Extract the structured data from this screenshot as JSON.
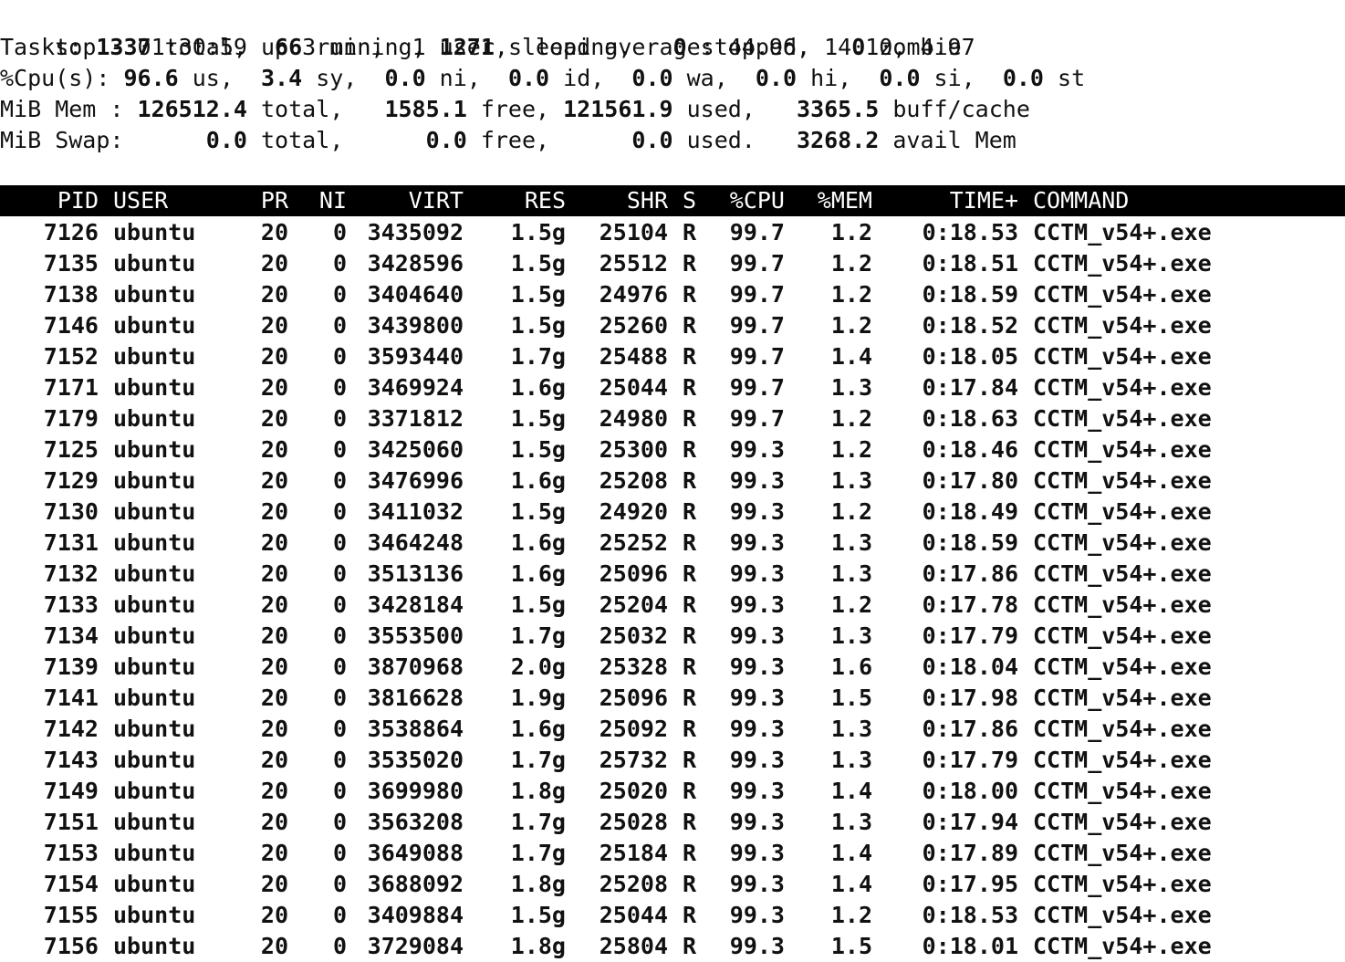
{
  "summary": {
    "line1": "top - 01:30:59 up 3 min,  1 user,  load average: 44.96, 14.10, 4.97",
    "tasks": {
      "label": "Tasks: ",
      "total": "1337",
      "total_lbl": " total,  ",
      "running": "66",
      "running_lbl": " running, ",
      "sleeping": "1271",
      "sleeping_lbl": " sleeping,   ",
      "stopped": "0",
      "stopped_lbl": " stopped,   ",
      "zombie": "0",
      "zombie_lbl": " zombie"
    },
    "cpu": {
      "label": "%Cpu(s): ",
      "us": "96.6",
      "us_lbl": " us,  ",
      "sy": "3.4",
      "sy_lbl": " sy,  ",
      "ni": "0.0",
      "ni_lbl": " ni,  ",
      "id": "0.0",
      "id_lbl": " id,  ",
      "wa": "0.0",
      "wa_lbl": " wa,  ",
      "hi": "0.0",
      "hi_lbl": " hi,  ",
      "si": "0.0",
      "si_lbl": " si,  ",
      "st": "0.0",
      "st_lbl": " st"
    },
    "mem": {
      "label": "MiB Mem : ",
      "total": "126512.4",
      "total_lbl": " total,   ",
      "free": "1585.1",
      "free_lbl": " free, ",
      "used": "121561.9",
      "used_lbl": " used,   ",
      "buff": "3365.5",
      "buff_lbl": " buff/cache"
    },
    "swap": {
      "label": "MiB Swap:      ",
      "total": "0.0",
      "total_lbl": " total,      ",
      "free": "0.0",
      "free_lbl": " free,      ",
      "used": "0.0",
      "used_lbl": " used.   ",
      "avail": "3268.2",
      "avail_lbl": " avail Mem"
    }
  },
  "columns": [
    "PID",
    "USER",
    "PR",
    "NI",
    "VIRT",
    "RES",
    "SHR",
    "S",
    "%CPU",
    "%MEM",
    "TIME+",
    "COMMAND"
  ],
  "processes": [
    [
      "7126",
      "ubuntu",
      "20",
      "0",
      "3435092",
      "1.5g",
      "25104",
      "R",
      "99.7",
      "1.2",
      "0:18.53",
      "CCTM_v54+.exe"
    ],
    [
      "7135",
      "ubuntu",
      "20",
      "0",
      "3428596",
      "1.5g",
      "25512",
      "R",
      "99.7",
      "1.2",
      "0:18.51",
      "CCTM_v54+.exe"
    ],
    [
      "7138",
      "ubuntu",
      "20",
      "0",
      "3404640",
      "1.5g",
      "24976",
      "R",
      "99.7",
      "1.2",
      "0:18.59",
      "CCTM_v54+.exe"
    ],
    [
      "7146",
      "ubuntu",
      "20",
      "0",
      "3439800",
      "1.5g",
      "25260",
      "R",
      "99.7",
      "1.2",
      "0:18.52",
      "CCTM_v54+.exe"
    ],
    [
      "7152",
      "ubuntu",
      "20",
      "0",
      "3593440",
      "1.7g",
      "25488",
      "R",
      "99.7",
      "1.4",
      "0:18.05",
      "CCTM_v54+.exe"
    ],
    [
      "7171",
      "ubuntu",
      "20",
      "0",
      "3469924",
      "1.6g",
      "25044",
      "R",
      "99.7",
      "1.3",
      "0:17.84",
      "CCTM_v54+.exe"
    ],
    [
      "7179",
      "ubuntu",
      "20",
      "0",
      "3371812",
      "1.5g",
      "24980",
      "R",
      "99.7",
      "1.2",
      "0:18.63",
      "CCTM_v54+.exe"
    ],
    [
      "7125",
      "ubuntu",
      "20",
      "0",
      "3425060",
      "1.5g",
      "25300",
      "R",
      "99.3",
      "1.2",
      "0:18.46",
      "CCTM_v54+.exe"
    ],
    [
      "7129",
      "ubuntu",
      "20",
      "0",
      "3476996",
      "1.6g",
      "25208",
      "R",
      "99.3",
      "1.3",
      "0:17.80",
      "CCTM_v54+.exe"
    ],
    [
      "7130",
      "ubuntu",
      "20",
      "0",
      "3411032",
      "1.5g",
      "24920",
      "R",
      "99.3",
      "1.2",
      "0:18.49",
      "CCTM_v54+.exe"
    ],
    [
      "7131",
      "ubuntu",
      "20",
      "0",
      "3464248",
      "1.6g",
      "25252",
      "R",
      "99.3",
      "1.3",
      "0:18.59",
      "CCTM_v54+.exe"
    ],
    [
      "7132",
      "ubuntu",
      "20",
      "0",
      "3513136",
      "1.6g",
      "25096",
      "R",
      "99.3",
      "1.3",
      "0:17.86",
      "CCTM_v54+.exe"
    ],
    [
      "7133",
      "ubuntu",
      "20",
      "0",
      "3428184",
      "1.5g",
      "25204",
      "R",
      "99.3",
      "1.2",
      "0:17.78",
      "CCTM_v54+.exe"
    ],
    [
      "7134",
      "ubuntu",
      "20",
      "0",
      "3553500",
      "1.7g",
      "25032",
      "R",
      "99.3",
      "1.3",
      "0:17.79",
      "CCTM_v54+.exe"
    ],
    [
      "7139",
      "ubuntu",
      "20",
      "0",
      "3870968",
      "2.0g",
      "25328",
      "R",
      "99.3",
      "1.6",
      "0:18.04",
      "CCTM_v54+.exe"
    ],
    [
      "7141",
      "ubuntu",
      "20",
      "0",
      "3816628",
      "1.9g",
      "25096",
      "R",
      "99.3",
      "1.5",
      "0:17.98",
      "CCTM_v54+.exe"
    ],
    [
      "7142",
      "ubuntu",
      "20",
      "0",
      "3538864",
      "1.6g",
      "25092",
      "R",
      "99.3",
      "1.3",
      "0:17.86",
      "CCTM_v54+.exe"
    ],
    [
      "7143",
      "ubuntu",
      "20",
      "0",
      "3535020",
      "1.7g",
      "25732",
      "R",
      "99.3",
      "1.3",
      "0:17.79",
      "CCTM_v54+.exe"
    ],
    [
      "7149",
      "ubuntu",
      "20",
      "0",
      "3699980",
      "1.8g",
      "25020",
      "R",
      "99.3",
      "1.4",
      "0:18.00",
      "CCTM_v54+.exe"
    ],
    [
      "7151",
      "ubuntu",
      "20",
      "0",
      "3563208",
      "1.7g",
      "25028",
      "R",
      "99.3",
      "1.3",
      "0:17.94",
      "CCTM_v54+.exe"
    ],
    [
      "7153",
      "ubuntu",
      "20",
      "0",
      "3649088",
      "1.7g",
      "25184",
      "R",
      "99.3",
      "1.4",
      "0:17.89",
      "CCTM_v54+.exe"
    ],
    [
      "7154",
      "ubuntu",
      "20",
      "0",
      "3688092",
      "1.8g",
      "25208",
      "R",
      "99.3",
      "1.4",
      "0:17.95",
      "CCTM_v54+.exe"
    ],
    [
      "7155",
      "ubuntu",
      "20",
      "0",
      "3409884",
      "1.5g",
      "25044",
      "R",
      "99.3",
      "1.2",
      "0:18.53",
      "CCTM_v54+.exe"
    ],
    [
      "7156",
      "ubuntu",
      "20",
      "0",
      "3729084",
      "1.8g",
      "25804",
      "R",
      "99.3",
      "1.5",
      "0:18.01",
      "CCTM_v54+.exe"
    ]
  ],
  "colors": {
    "background": "#ffffff",
    "text": "#111111",
    "header_bg": "#000000",
    "header_text": "#ffffff"
  }
}
